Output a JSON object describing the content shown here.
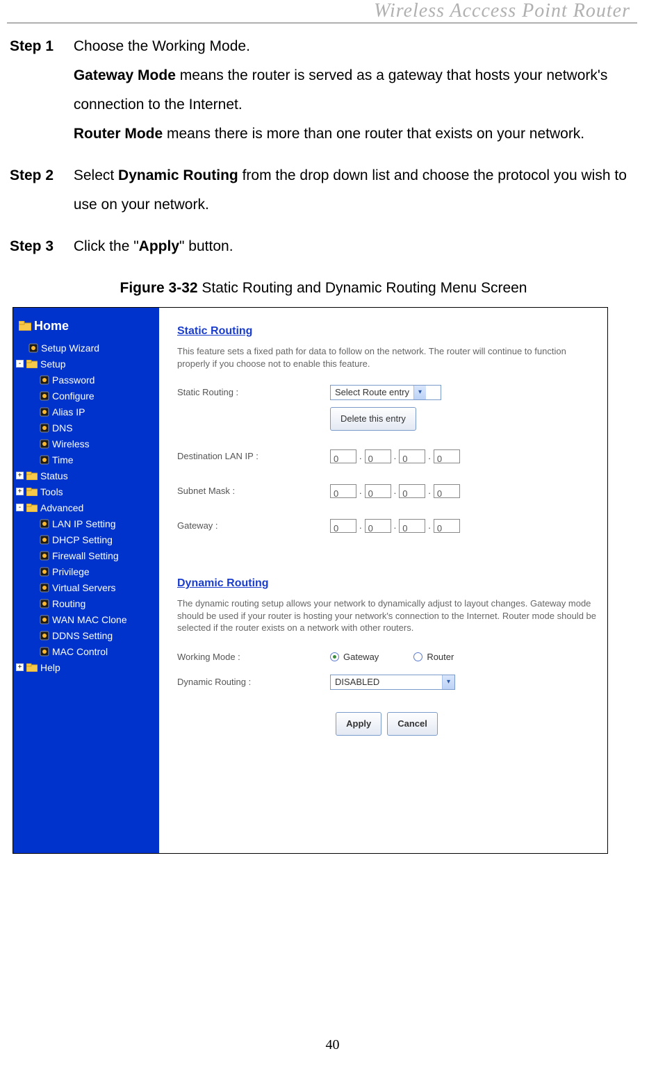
{
  "header": {
    "running_head": "Wireless  Acccess  Point  Router"
  },
  "steps": [
    {
      "label": "Step 1",
      "parts": [
        {
          "text": "Choose the Working Mode.",
          "nl_after": true
        },
        {
          "bold": "Gateway Mode",
          "text": " means the router is served as a gateway that hosts your network's connection to the Internet.",
          "nl_after": true
        },
        {
          "bold": "Router Mode",
          "text": " means there is more than one router that exists on your network."
        }
      ]
    },
    {
      "label": "Step 2",
      "parts": [
        {
          "text": "Select ",
          "bold_after": "Dynamic Routing",
          "text2": " from the drop down list and choose the protocol you wish to use on your network."
        }
      ]
    },
    {
      "label": "Step 3",
      "parts": [
        {
          "text": "Click the \"",
          "bold_after": "Apply",
          "text2": "\" button."
        }
      ]
    }
  ],
  "figure": {
    "label_bold": "Figure 3-32",
    "label_rest": " Static Routing and Dynamic Routing Menu Screen"
  },
  "sidebar": {
    "home": "Home",
    "items": [
      {
        "type": "page",
        "indent": 1,
        "label": "Setup Wizard"
      },
      {
        "type": "folder_open",
        "indent": 0,
        "label": "Setup",
        "box": "-"
      },
      {
        "type": "page",
        "indent": 2,
        "label": "Password"
      },
      {
        "type": "page",
        "indent": 2,
        "label": "Configure"
      },
      {
        "type": "page",
        "indent": 2,
        "label": "Alias IP"
      },
      {
        "type": "page",
        "indent": 2,
        "label": "DNS"
      },
      {
        "type": "page",
        "indent": 2,
        "label": "Wireless"
      },
      {
        "type": "page",
        "indent": 2,
        "label": "Time"
      },
      {
        "type": "folder",
        "indent": 0,
        "label": "Status",
        "box": "+"
      },
      {
        "type": "folder",
        "indent": 0,
        "label": "Tools",
        "box": "+"
      },
      {
        "type": "folder_open",
        "indent": 0,
        "label": "Advanced",
        "box": "-"
      },
      {
        "type": "page",
        "indent": 2,
        "label": "LAN IP Setting"
      },
      {
        "type": "page",
        "indent": 2,
        "label": "DHCP Setting"
      },
      {
        "type": "page",
        "indent": 2,
        "label": "Firewall Setting"
      },
      {
        "type": "page",
        "indent": 2,
        "label": "Privilege"
      },
      {
        "type": "page",
        "indent": 2,
        "label": "Virtual Servers"
      },
      {
        "type": "page",
        "indent": 2,
        "label": "Routing"
      },
      {
        "type": "page",
        "indent": 2,
        "label": "WAN MAC Clone"
      },
      {
        "type": "page",
        "indent": 2,
        "label": "DDNS Setting"
      },
      {
        "type": "page",
        "indent": 2,
        "label": "MAC Control"
      },
      {
        "type": "folder",
        "indent": 0,
        "label": "Help",
        "box": "+"
      }
    ]
  },
  "main": {
    "static": {
      "title": "Static Routing",
      "desc": "This feature sets a fixed path for data to follow on the network. The router will continue to function properly if you choose not to enable this feature.",
      "static_routing_label": "Static Routing :",
      "static_routing_select": "Select Route entry",
      "delete_button": "Delete this entry",
      "dest_label": "Destination LAN IP :",
      "subnet_label": "Subnet Mask :",
      "gateway_label": "Gateway :",
      "ip1": [
        "0",
        "0",
        "0",
        "0"
      ],
      "ip2": [
        "0",
        "0",
        "0",
        "0"
      ],
      "ip3": [
        "0",
        "0",
        "0",
        "0"
      ]
    },
    "dynamic": {
      "title": "Dynamic Routing",
      "desc": "The dynamic routing setup allows your network to dynamically adjust to layout changes. Gateway mode should be used if your router is hosting your network's connection to the Internet. Router mode should be selected if the router exists on a network with other routers.",
      "working_mode_label": "Working Mode :",
      "radio_gateway": "Gateway",
      "radio_router": "Router",
      "dyn_routing_label": "Dynamic Routing :",
      "dyn_routing_select": "DISABLED",
      "apply": "Apply",
      "cancel": "Cancel"
    }
  },
  "page_number": "40",
  "colors": {
    "sidebar_bg": "#0033cc",
    "section_title": "#1a3dcc",
    "running_head": "#b0b0b0"
  }
}
